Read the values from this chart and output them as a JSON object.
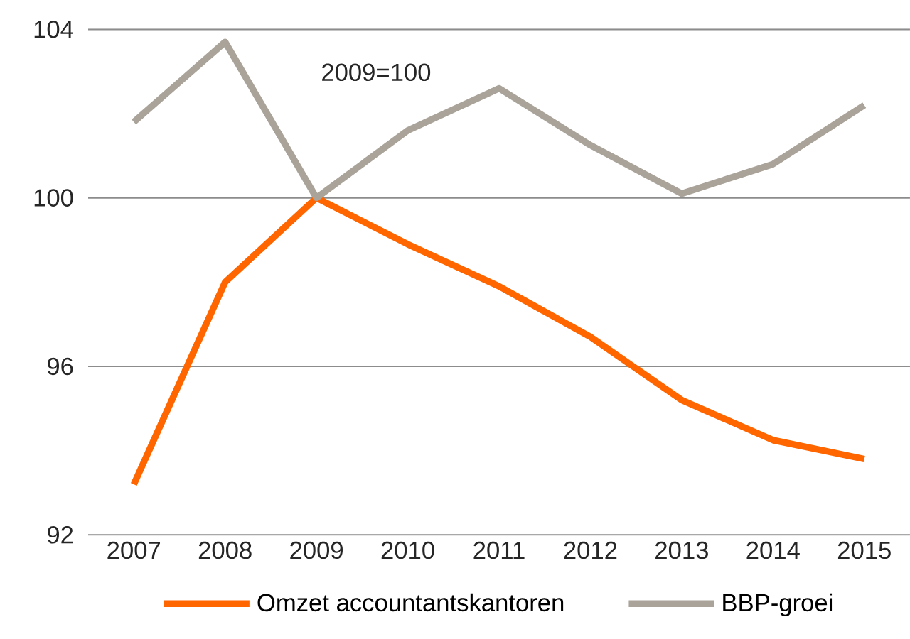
{
  "chart_data": {
    "type": "line",
    "categories": [
      "2007",
      "2008",
      "2009",
      "2010",
      "2011",
      "2012",
      "2013",
      "2014",
      "2015"
    ],
    "series": [
      {
        "name": "Omzet accountantskantoren",
        "color": "#ff6600",
        "values": [
          93.2,
          98.0,
          100.0,
          98.9,
          97.9,
          96.7,
          95.2,
          94.25,
          93.8
        ]
      },
      {
        "name": "BBP-groei",
        "color": "#aaa39a",
        "values": [
          101.8,
          103.7,
          100.0,
          101.6,
          102.6,
          101.25,
          100.1,
          100.8,
          102.2
        ]
      }
    ],
    "ylim": [
      92,
      104
    ],
    "yticks": [
      92,
      96,
      100,
      104
    ],
    "grid": "y",
    "legend": "bottom",
    "line_style": "solid",
    "annotations": [
      "2009=100"
    ]
  }
}
